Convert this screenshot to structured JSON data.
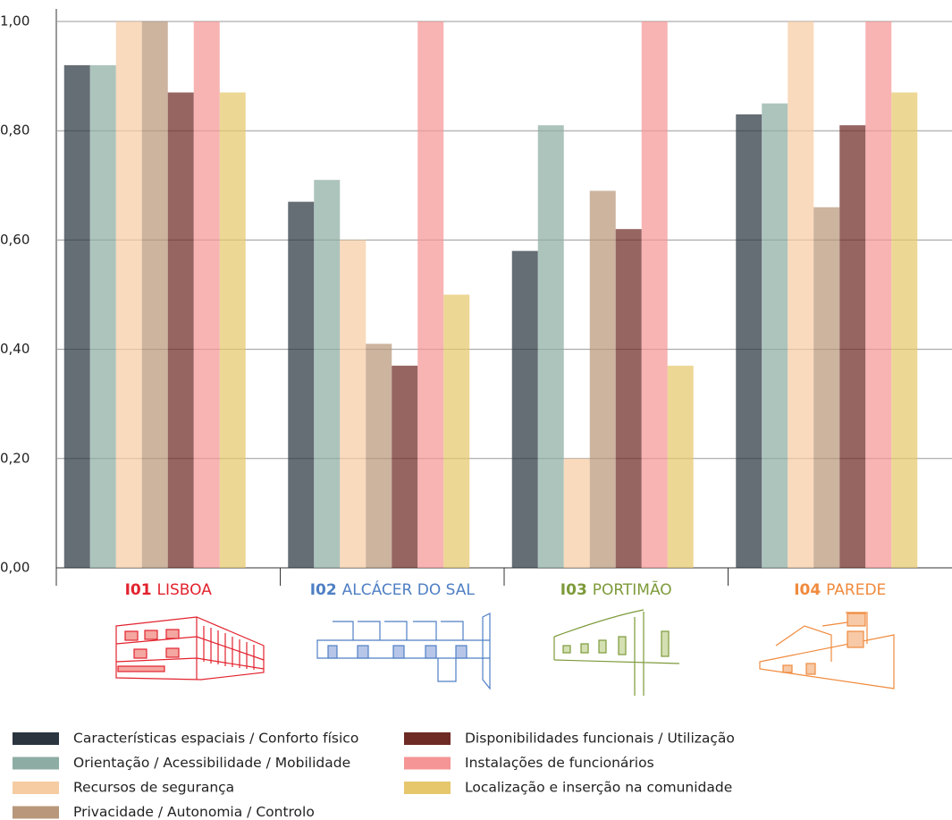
{
  "chart_data": {
    "type": "bar",
    "categories": [
      "I01 LISBOA",
      "I02 ALCÁCER DO SAL",
      "I03 PORTIMÃO",
      "I04 PAREDE"
    ],
    "category_colors": [
      "#e2232e",
      "#4f7fc4",
      "#7d9a3a",
      "#f08a3c"
    ],
    "series": [
      {
        "name": "Características espaciais / Conforto físico",
        "color": "#2a3540",
        "values": [
          0.92,
          0.67,
          0.58,
          0.83
        ]
      },
      {
        "name": "Orientação / Acessibilidade / Mobilidade",
        "color": "#8dada4",
        "values": [
          0.92,
          0.71,
          0.81,
          0.85
        ]
      },
      {
        "name": "Recursos de segurança",
        "color": "#f6cca2",
        "values": [
          1.0,
          0.6,
          0.2,
          1.0
        ]
      },
      {
        "name": "Privacidade / Autonomia / Controlo",
        "color": "#b8977a",
        "values": [
          1.0,
          0.41,
          0.69,
          0.66
        ]
      },
      {
        "name": "Disponibilidades funcionais / Utilização",
        "color": "#6e2a24",
        "values": [
          0.87,
          0.37,
          0.62,
          0.81
        ]
      },
      {
        "name": "Instalações de funcionários",
        "color": "#f59595",
        "values": [
          1.0,
          1.0,
          1.0,
          1.0
        ]
      },
      {
        "name": "Localização e inserção na comunidade",
        "color": "#e6c76c",
        "values": [
          0.87,
          0.5,
          0.37,
          0.87
        ]
      }
    ],
    "bar_opacity": 0.72,
    "ylim": [
      0,
      1
    ],
    "yticks": [
      {
        "value": 0,
        "label": "0,00"
      },
      {
        "value": 0.2,
        "label": "0,20"
      },
      {
        "value": 0.4,
        "label": "0,40"
      },
      {
        "value": 0.6,
        "label": "0,60"
      },
      {
        "value": 0.8,
        "label": "0,80"
      },
      {
        "value": 1,
        "label": "1,00"
      }
    ],
    "grid": true
  }
}
